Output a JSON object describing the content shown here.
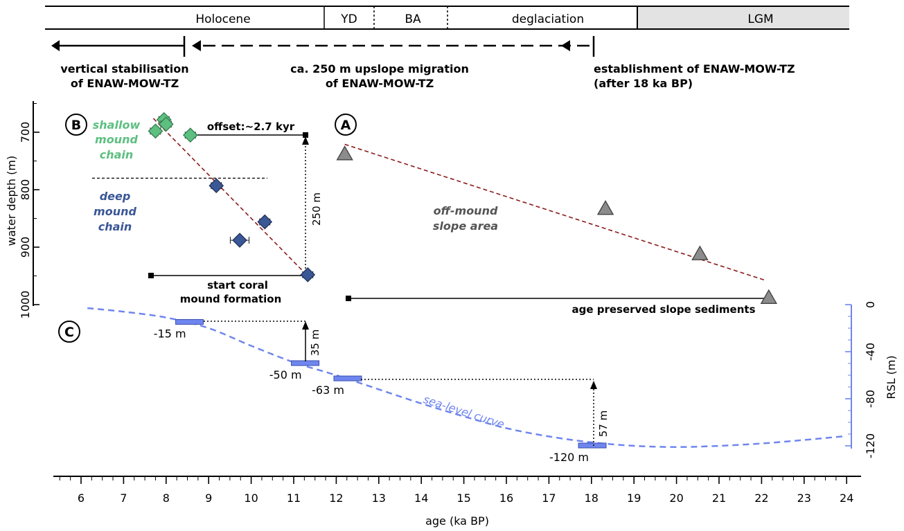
{
  "timeline": {
    "periods": [
      {
        "label": "Holocene",
        "shaded": false
      },
      {
        "label": "YD",
        "shaded": false
      },
      {
        "label": "BA",
        "shaded": false
      },
      {
        "label": "deglaciation",
        "shaded": false
      },
      {
        "label": "LGM",
        "shaded": true
      }
    ],
    "stages": {
      "vertical": {
        "line1": "vertical stabilisation",
        "line2": "of ENAW-MOW-TZ"
      },
      "migration": {
        "line1": "ca. 250 m upslope migration",
        "line2": "of ENAW-MOW-TZ"
      },
      "establishment": {
        "line1": "establishment of ENAW-MOW-TZ",
        "line2": "(after 18 ka BP)"
      }
    }
  },
  "panels": {
    "A": "A",
    "B": "B",
    "C": "C"
  },
  "labels": {
    "shallow": [
      "shallow",
      "mound",
      "chain"
    ],
    "deep": [
      "deep",
      "mound",
      "chain"
    ],
    "offmound": [
      "off-mound",
      "slope area"
    ],
    "offset": "offset:~2.7 kyr",
    "vert250": "250 m",
    "start": [
      "start coral",
      "mound formation"
    ],
    "agePreserved": "age preserved slope sediments",
    "sealevel": "sea-level curve",
    "vert35": "35 m",
    "vert57": "57 m"
  },
  "colors": {
    "shallow": "#5dbf80",
    "deep": "#3a5796",
    "offmound": "#8c8c8c",
    "trend": "#8b1a1a",
    "sealevel": "#6f86ee",
    "lgmShade": "#e3e3e3"
  },
  "chart_data": {
    "type": "scatter",
    "xlabel": "age (ka BP)",
    "xlim": [
      5.4,
      24.3
    ],
    "xticks": [
      6,
      7,
      8,
      9,
      10,
      11,
      12,
      13,
      14,
      15,
      16,
      17,
      18,
      19,
      20,
      21,
      22,
      23,
      24
    ],
    "ylabel_left": "water depth (m)",
    "ylim_left": [
      650,
      1000
    ],
    "yticks_left": [
      700,
      800,
      900,
      1000
    ],
    "ylabel_right": "RSL (m)",
    "ylim_right": [
      0,
      -120
    ],
    "yticks_right": [
      0,
      -40,
      -80,
      -120
    ],
    "series": [
      {
        "name": "shallow mound chain",
        "marker": "diamond",
        "points": [
          {
            "x": 7.75,
            "y": 698,
            "xerr": 0.12,
            "yerr": 10
          },
          {
            "x": 7.95,
            "y": 678,
            "xerr": 0.12,
            "yerr": 10
          },
          {
            "x": 8.0,
            "y": 686,
            "xerr": 0.12,
            "yerr": 10
          },
          {
            "x": 8.57,
            "y": 705,
            "xerr": 0.12,
            "yerr": 10
          }
        ]
      },
      {
        "name": "deep mound chain",
        "marker": "diamond",
        "points": [
          {
            "x": 9.18,
            "y": 793,
            "xerr": 0.12,
            "yerr": 12
          },
          {
            "x": 10.32,
            "y": 856,
            "xerr": 0.12,
            "yerr": 12
          },
          {
            "x": 9.73,
            "y": 888,
            "xerr": 0.22,
            "yerr": 12
          },
          {
            "x": 11.33,
            "y": 948,
            "xerr": 0.12,
            "yerr": 12
          }
        ]
      },
      {
        "name": "off-mound slope area",
        "marker": "triangle",
        "points": [
          {
            "x": 12.2,
            "y": 738
          },
          {
            "x": 18.33,
            "y": 833
          },
          {
            "x": 20.55,
            "y": 912
          },
          {
            "x": 22.17,
            "y": 988
          }
        ]
      }
    ],
    "trendlines": [
      {
        "from": [
          7.7,
          676
        ],
        "to": [
          11.3,
          948
        ]
      },
      {
        "from": [
          12.2,
          721
        ],
        "to": [
          22.1,
          958
        ]
      }
    ],
    "sea_level_curve": [
      [
        6.15,
        3
      ],
      [
        7.0,
        6
      ],
      [
        8.0,
        11
      ],
      [
        9.0,
        20
      ],
      [
        10.0,
        35
      ],
      [
        11.0,
        49
      ],
      [
        12.0,
        60
      ],
      [
        13.0,
        72
      ],
      [
        14.0,
        84
      ],
      [
        15.0,
        95
      ],
      [
        16.0,
        105
      ],
      [
        17.0,
        112
      ],
      [
        18.0,
        117
      ],
      [
        19.0,
        120
      ],
      [
        20.0,
        121
      ],
      [
        21.0,
        120
      ],
      [
        22.0,
        118
      ],
      [
        23.0,
        115
      ],
      [
        23.9,
        112
      ]
    ],
    "sea_level_markers": [
      {
        "label": "-15 m",
        "x": 8.55,
        "y": 15
      },
      {
        "label": "-50 m",
        "x": 11.27,
        "y": 50
      },
      {
        "label": "-63 m",
        "x": 12.27,
        "y": 63
      },
      {
        "label": "-120 m",
        "x": 18.02,
        "y": 120
      }
    ],
    "depth_dividers": [
      780
    ]
  }
}
